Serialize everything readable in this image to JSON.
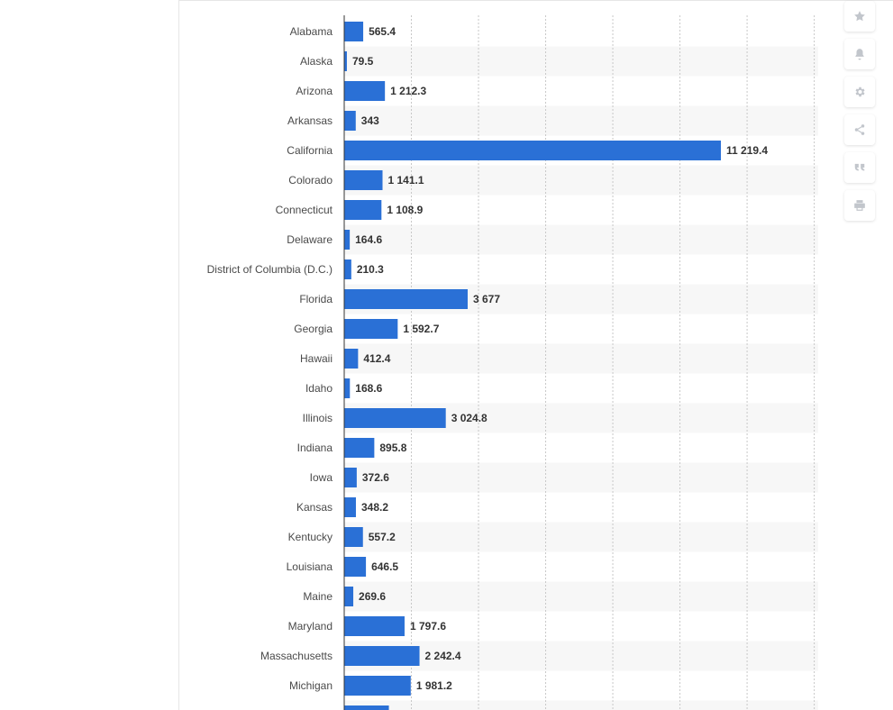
{
  "chart_data": {
    "type": "bar",
    "orientation": "horizontal",
    "categories": [
      "Alabama",
      "Alaska",
      "Arizona",
      "Arkansas",
      "California",
      "Colorado",
      "Connecticut",
      "Delaware",
      "District of Columbia (D.C.)",
      "Florida",
      "Georgia",
      "Hawaii",
      "Idaho",
      "Illinois",
      "Indiana",
      "Iowa",
      "Kansas",
      "Kentucky",
      "Louisiana",
      "Maine",
      "Maryland",
      "Massachusetts",
      "Michigan"
    ],
    "values": [
      565.4,
      79.5,
      1212.3,
      343,
      11219.4,
      1141.1,
      1108.9,
      164.6,
      210.3,
      3677,
      1592.7,
      412.4,
      168.6,
      3024.8,
      895.8,
      372.6,
      348.2,
      557.2,
      646.5,
      269.6,
      1797.6,
      2242.4,
      1981.2
    ],
    "value_labels": [
      "565.4",
      "79.5",
      "1 212.3",
      "343",
      "11 219.4",
      "1 141.1",
      "1 108.9",
      "164.6",
      "210.3",
      "3 677",
      "1 592.7",
      "412.4",
      "168.6",
      "3 024.8",
      "895.8",
      "372.6",
      "348.2",
      "557.2",
      "646.5",
      "269.6",
      "1 797.6",
      "2 242.4",
      "1 981.2"
    ],
    "partial_next_value": 1330,
    "xlim": [
      0,
      14000
    ],
    "grid": true,
    "bar_color": "#2a70d6",
    "title": "",
    "xlabel": "",
    "ylabel": ""
  },
  "toolbar": {
    "buttons": [
      "star-icon",
      "bell-icon",
      "gear-icon",
      "share-icon",
      "quote-icon",
      "print-icon"
    ]
  }
}
